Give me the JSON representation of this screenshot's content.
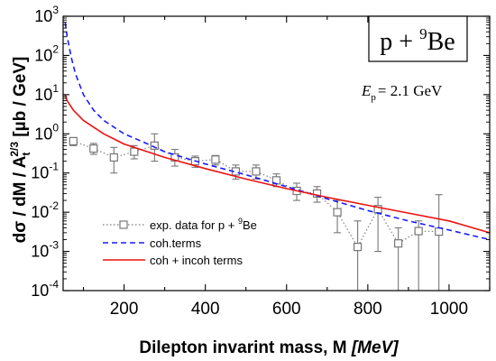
{
  "chart_data": {
    "type": "scatter",
    "reaction_label": {
      "main": "p + ",
      "sup": "9",
      "tail": "Be"
    },
    "energy_label": {
      "sym": "E",
      "sub": "p",
      "text": "= 2.1 GeV"
    },
    "xlabel": {
      "main": "Dilepton invarint mass, M ",
      "unit": "[MeV]"
    },
    "ylabel": {
      "lead": "dσ / dM / A",
      "sub": "t",
      "sup": "2/3",
      "tail": " [µb / GeV]"
    },
    "x_scale": "linear",
    "y_scale": "log",
    "xlim": [
      50,
      1100
    ],
    "ylim": [
      0.0001,
      1000
    ],
    "x_ticks": [
      200,
      400,
      600,
      800,
      1000
    ],
    "x_tick_labels": [
      "200",
      "400",
      "600",
      "800",
      "1000"
    ],
    "y_ticks": [
      1000,
      100,
      10,
      1,
      0.1,
      0.01,
      0.001,
      0.0001
    ],
    "y_tick_labels": [
      {
        "base": "10",
        "exp": "3"
      },
      {
        "base": "10",
        "exp": "2"
      },
      {
        "base": "10",
        "exp": "1"
      },
      {
        "base": "10",
        "exp": "0"
      },
      {
        "base": "10",
        "exp": "-1"
      },
      {
        "base": "10",
        "exp": "-2"
      },
      {
        "base": "10",
        "exp": "-3"
      },
      {
        "base": "10",
        "exp": "-4"
      }
    ],
    "grid": false,
    "legend_position": "bottom-left",
    "series": [
      {
        "name": "exp. data for p + ",
        "name_sup": "9",
        "name_tail": "Be",
        "style": "dotted-squares",
        "color": "#777777",
        "points": [
          {
            "x": 75,
            "y": 0.65,
            "err_lo": 0.15,
            "err_hi": 0.15
          },
          {
            "x": 125,
            "y": 0.42,
            "err_lo": 0.12,
            "err_hi": 0.15
          },
          {
            "x": 175,
            "y": 0.25,
            "err_lo": 0.15,
            "err_hi": 0.2
          },
          {
            "x": 225,
            "y": 0.35,
            "err_lo": 0.12,
            "err_hi": 0.15
          },
          {
            "x": 275,
            "y": 0.5,
            "err_lo": 0.3,
            "err_hi": 0.5
          },
          {
            "x": 325,
            "y": 0.25,
            "err_lo": 0.1,
            "err_hi": 0.15
          },
          {
            "x": 375,
            "y": 0.2,
            "err_lo": 0.06,
            "err_hi": 0.07
          },
          {
            "x": 425,
            "y": 0.22,
            "err_lo": 0.06,
            "err_hi": 0.06
          },
          {
            "x": 475,
            "y": 0.11,
            "err_lo": 0.04,
            "err_hi": 0.05
          },
          {
            "x": 525,
            "y": 0.11,
            "err_lo": 0.04,
            "err_hi": 0.05
          },
          {
            "x": 575,
            "y": 0.065,
            "err_lo": 0.02,
            "err_hi": 0.03
          },
          {
            "x": 625,
            "y": 0.035,
            "err_lo": 0.015,
            "err_hi": 0.02
          },
          {
            "x": 675,
            "y": 0.03,
            "err_lo": 0.012,
            "err_hi": 0.015
          },
          {
            "x": 725,
            "y": 0.01,
            "err_lo": 0.007,
            "err_hi": 0.01
          },
          {
            "x": 775,
            "y": 0.0013,
            "err_lo": 0.00128,
            "err_hi": 0.0047
          },
          {
            "x": 825,
            "y": 0.012,
            "err_lo": 0.011,
            "err_hi": 0.012
          },
          {
            "x": 875,
            "y": 0.0016,
            "err_lo": 0.0015,
            "err_hi": 0.0024
          },
          {
            "x": 925,
            "y": 0.0033,
            "err_lo": 0.00329,
            "err_hi": 0.0027
          },
          {
            "x": 975,
            "y": 0.0032,
            "err_lo": 0.00319,
            "err_hi": 0.0248
          }
        ]
      },
      {
        "name": "coh.terms",
        "style": "dashed",
        "color": "#1a1aff",
        "points": [
          {
            "x": 55,
            "y": 700
          },
          {
            "x": 60,
            "y": 300
          },
          {
            "x": 70,
            "y": 90
          },
          {
            "x": 80,
            "y": 35
          },
          {
            "x": 100,
            "y": 10
          },
          {
            "x": 125,
            "y": 4
          },
          {
            "x": 150,
            "y": 2.2
          },
          {
            "x": 200,
            "y": 1
          },
          {
            "x": 250,
            "y": 0.6
          },
          {
            "x": 300,
            "y": 0.35
          },
          {
            "x": 400,
            "y": 0.17
          },
          {
            "x": 500,
            "y": 0.09
          },
          {
            "x": 600,
            "y": 0.045
          },
          {
            "x": 700,
            "y": 0.022
          },
          {
            "x": 800,
            "y": 0.011
          },
          {
            "x": 900,
            "y": 0.006
          },
          {
            "x": 1000,
            "y": 0.0035
          },
          {
            "x": 1100,
            "y": 0.002
          }
        ]
      },
      {
        "name": "coh + incoh terms",
        "style": "solid",
        "color": "#ee1111",
        "points": [
          {
            "x": 55,
            "y": 10
          },
          {
            "x": 60,
            "y": 7
          },
          {
            "x": 75,
            "y": 4
          },
          {
            "x": 100,
            "y": 2.2
          },
          {
            "x": 150,
            "y": 1
          },
          {
            "x": 200,
            "y": 0.55
          },
          {
            "x": 300,
            "y": 0.25
          },
          {
            "x": 400,
            "y": 0.13
          },
          {
            "x": 500,
            "y": 0.07
          },
          {
            "x": 600,
            "y": 0.04
          },
          {
            "x": 700,
            "y": 0.024
          },
          {
            "x": 800,
            "y": 0.015
          },
          {
            "x": 900,
            "y": 0.0095
          },
          {
            "x": 1000,
            "y": 0.006
          },
          {
            "x": 1100,
            "y": 0.003
          }
        ]
      }
    ]
  }
}
